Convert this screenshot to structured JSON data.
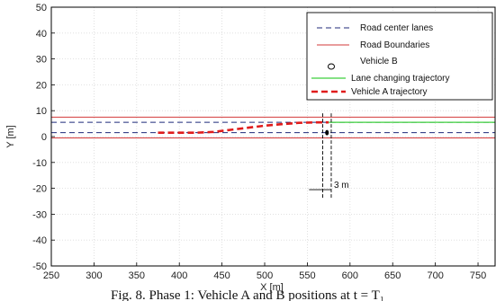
{
  "chart_data": {
    "type": "line",
    "xlabel": "X [m]",
    "ylabel": "Y [m]",
    "xlim": [
      250,
      770
    ],
    "ylim": [
      -50,
      50
    ],
    "xticks": [
      250,
      300,
      350,
      400,
      450,
      500,
      550,
      600,
      650,
      700,
      750
    ],
    "yticks": [
      50,
      40,
      30,
      20,
      10,
      0,
      -10,
      -20,
      -30,
      -40,
      -50
    ],
    "grid": true,
    "legend_position": "top-right",
    "colors": {
      "center_lanes": "#1f2a7a",
      "boundaries": "#d33a3a",
      "vehicle_b": "#000000",
      "lane_change": "#3ccf3c",
      "vehicle_a": "#e01b1b"
    },
    "series": [
      {
        "name": "Road center lanes",
        "style": "dashed",
        "lines": [
          {
            "x": [
              250,
              770
            ],
            "y": [
              1.5,
              1.5
            ]
          },
          {
            "x": [
              250,
              770
            ],
            "y": [
              5.5,
              5.5
            ]
          }
        ]
      },
      {
        "name": "Road Boundaries",
        "style": "solid",
        "lines": [
          {
            "x": [
              250,
              770
            ],
            "y": [
              -0.5,
              -0.5
            ]
          },
          {
            "x": [
              250,
              770
            ],
            "y": [
              7.5,
              7.5
            ]
          }
        ]
      },
      {
        "name": "Vehicle B",
        "style": "marker",
        "x": [
          573
        ],
        "y": [
          1.5
        ]
      },
      {
        "name": "Lane changing trajectory",
        "style": "solid",
        "x": [
          575,
          770
        ],
        "y": [
          5.5,
          5.5
        ]
      },
      {
        "name": "Vehicle A trajectory",
        "style": "thick-dashed",
        "x": [
          375,
          420,
          440,
          460,
          480,
          500,
          520,
          540,
          560,
          575
        ],
        "y": [
          1.5,
          1.5,
          1.8,
          2.6,
          3.4,
          4.2,
          4.8,
          5.3,
          5.5,
          5.5
        ]
      }
    ],
    "annotation": {
      "label": "3 m",
      "vertical_lines_x": [
        568,
        578
      ],
      "y_range": [
        -24,
        9
      ],
      "bracket_y": -20.5,
      "bracket_x": [
        552,
        578
      ]
    },
    "caption": "Fig. 8.   Phase 1: Vehicle A and B positions at t = T₁"
  }
}
